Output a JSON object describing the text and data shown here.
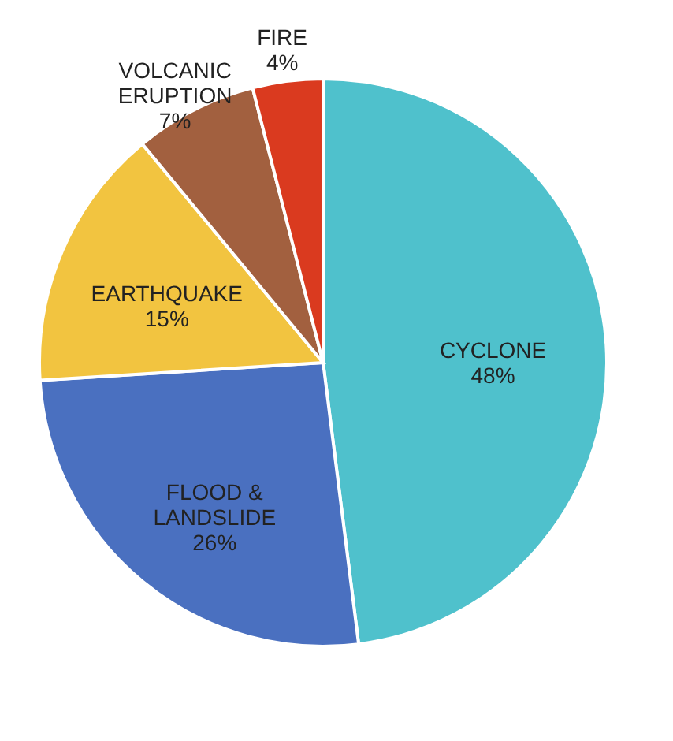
{
  "chart_data": {
    "type": "pie",
    "categories": [
      "CYCLONE",
      "FLOOD & LANDSLIDE",
      "EARTHQUAKE",
      "VOLCANIC ERUPTION",
      "FIRE"
    ],
    "values": [
      48,
      26,
      15,
      7,
      4
    ],
    "colors": [
      "#4fc1cc",
      "#4a70c0",
      "#f2c440",
      "#a2603f",
      "#da3a1f"
    ],
    "value_labels": [
      "48%",
      "26%",
      "15%",
      "7%",
      "4%"
    ],
    "legend": false
  }
}
